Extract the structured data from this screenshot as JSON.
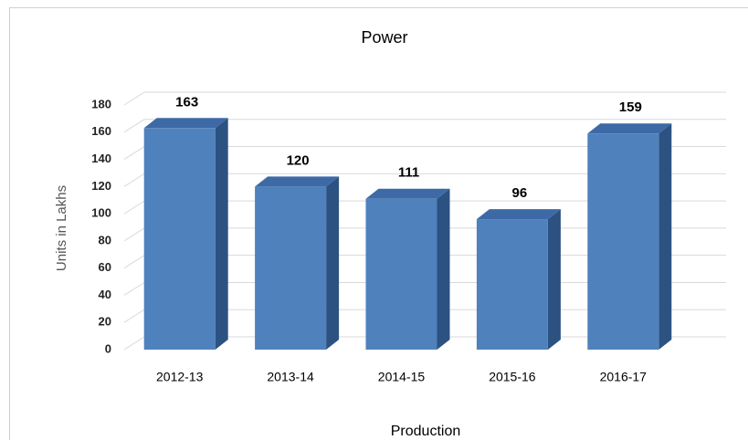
{
  "chart_data": {
    "type": "bar3d",
    "title": "Power",
    "x_label": "Production",
    "y_label": "Units in Lakhs",
    "categories": [
      "2012-13",
      "2013-14",
      "2014-15",
      "2015-16",
      "2016-17"
    ],
    "values": [
      163,
      120,
      111,
      96,
      159
    ],
    "color": "#4f81bd",
    "ylim": [
      0,
      180
    ],
    "yticks": [
      0,
      20,
      40,
      60,
      80,
      100,
      120,
      140,
      160,
      180
    ],
    "grid": true
  }
}
